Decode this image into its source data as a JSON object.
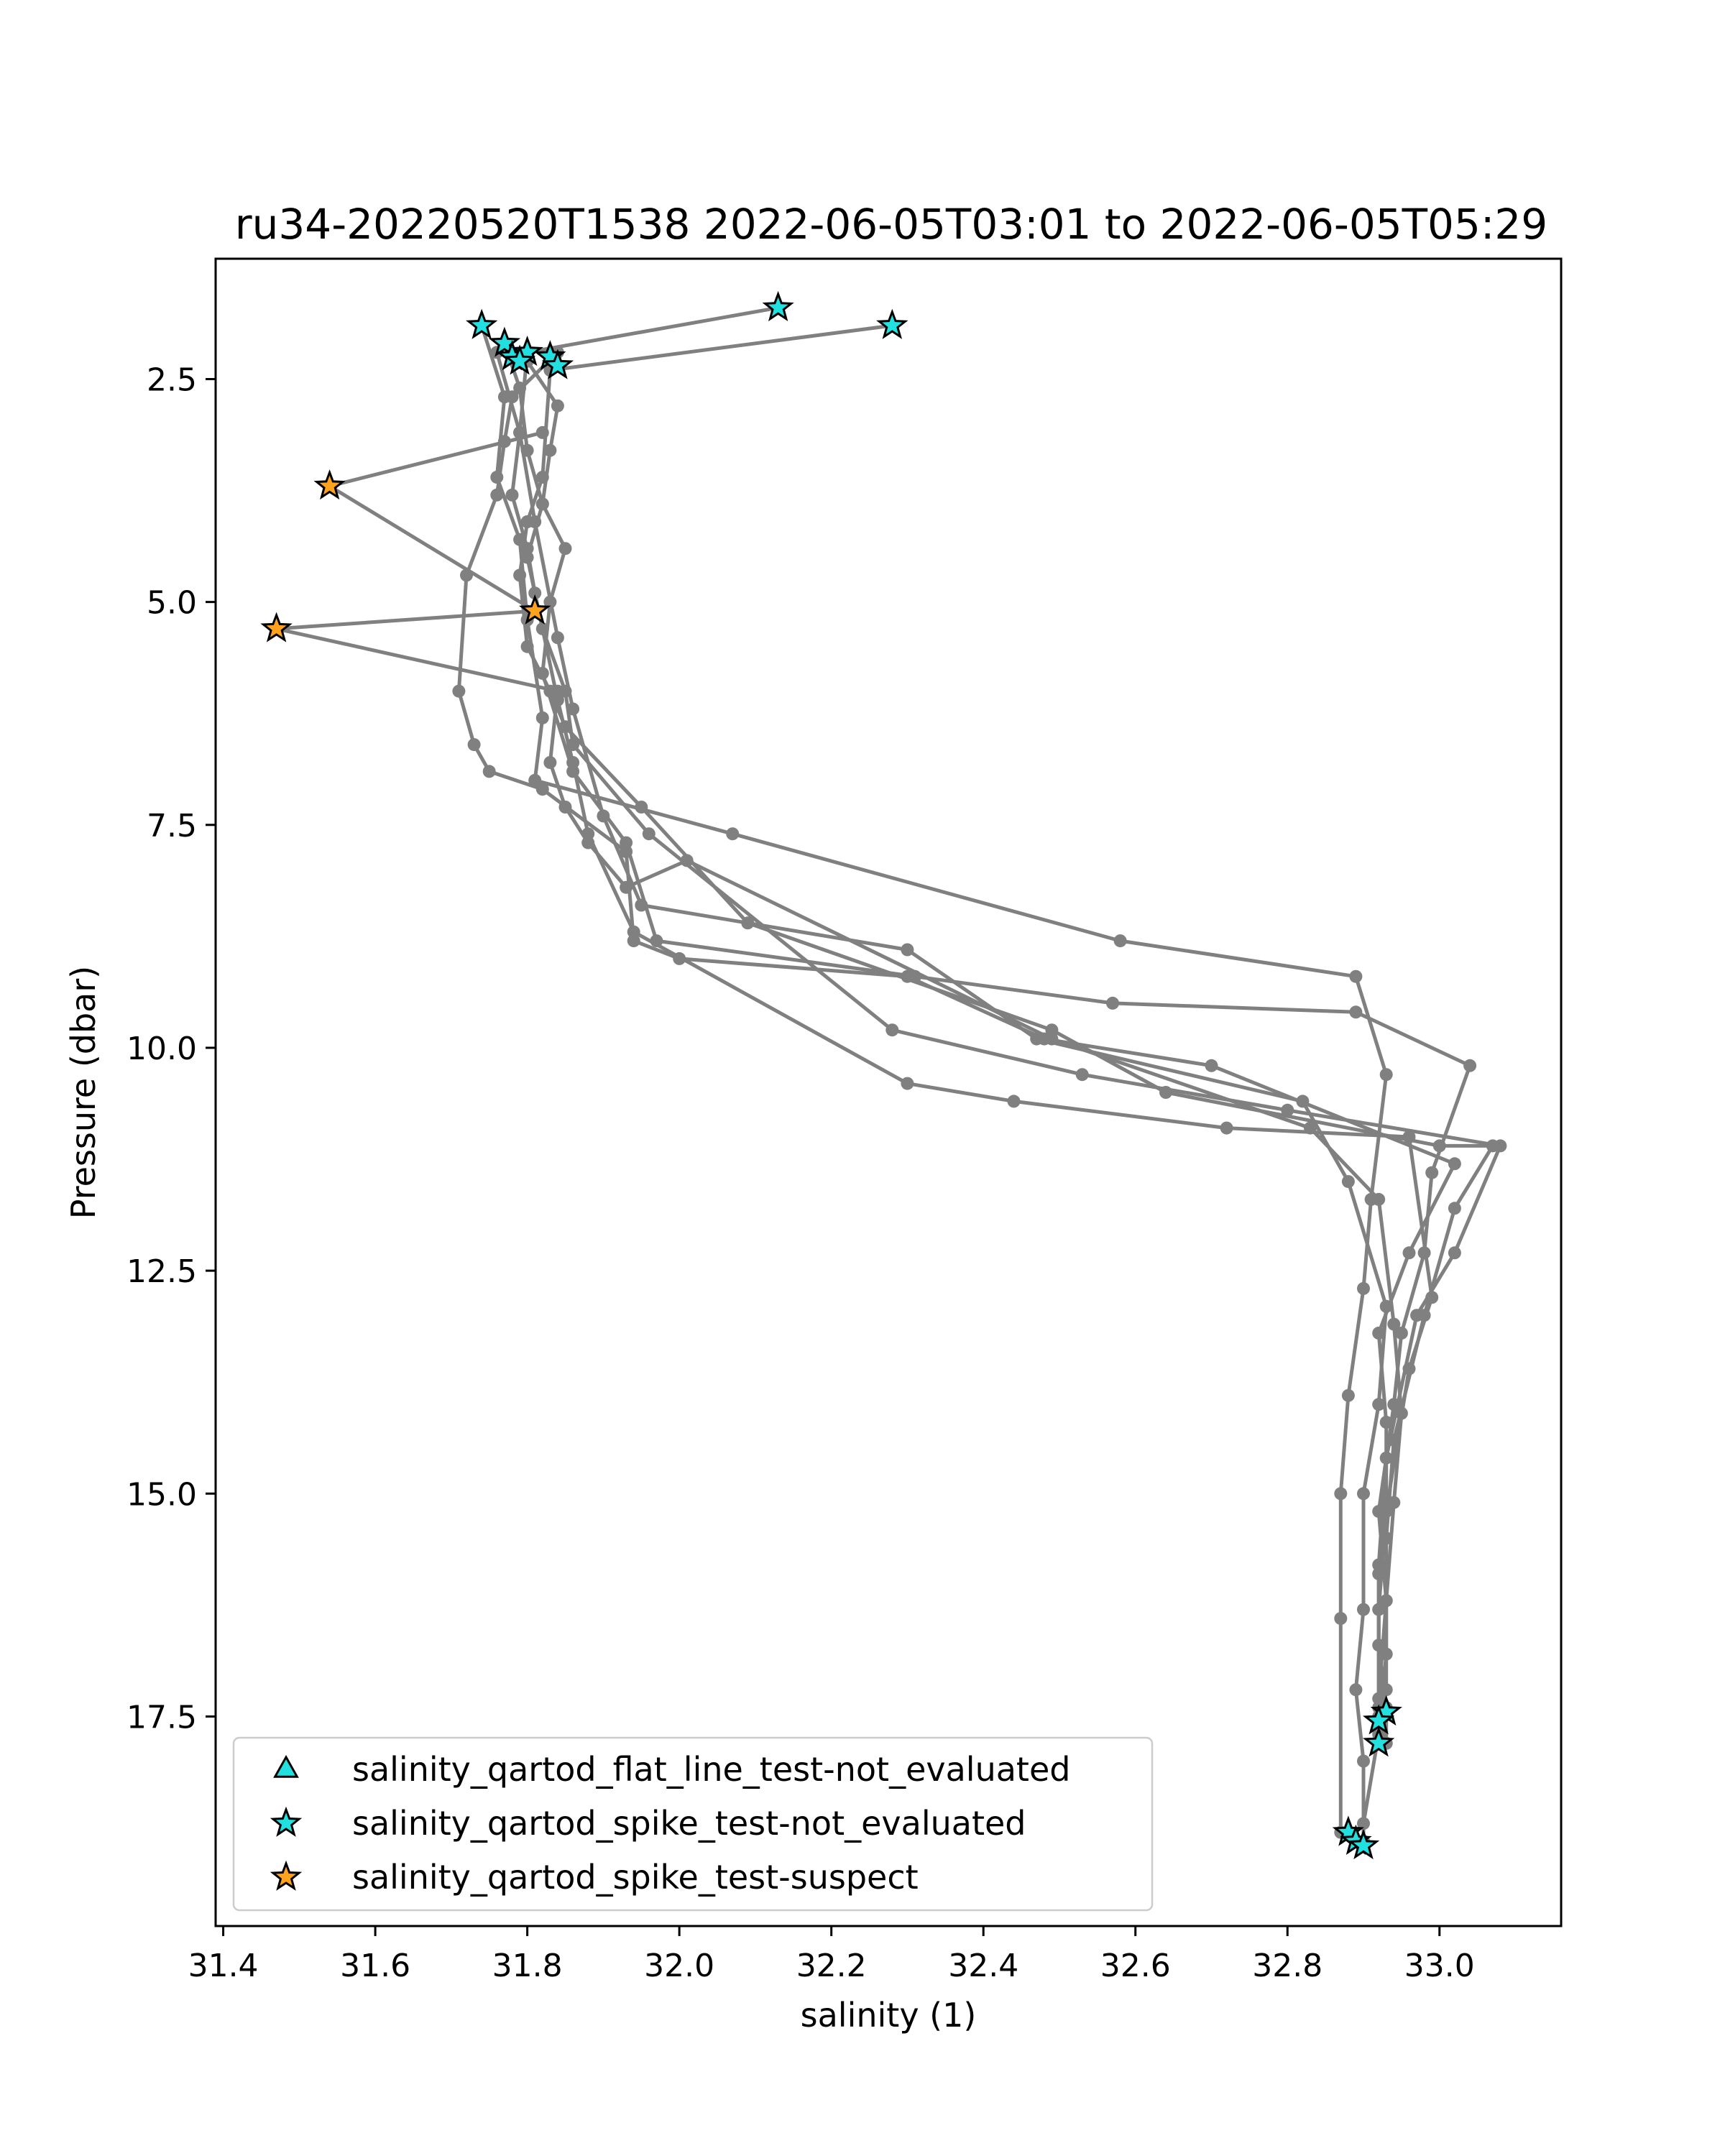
{
  "chart_data": {
    "type": "line",
    "title": "ru34-20220520T1538 2022-06-05T03:01 to 2022-06-05T05:29",
    "xlabel": "salinity (1)",
    "ylabel": "Pressure (dbar)",
    "xlim": [
      31.39,
      33.16
    ],
    "ylim": [
      19.85,
      1.15
    ],
    "y_inverted": true,
    "xticks": [
      31.4,
      31.6,
      31.8,
      32.0,
      32.2,
      32.4,
      32.6,
      32.8,
      33.0
    ],
    "xtick_labels": [
      "31.4",
      "31.6",
      "31.8",
      "32.0",
      "32.2",
      "32.4",
      "32.6",
      "32.8",
      "33.0"
    ],
    "yticks": [
      2.5,
      5.0,
      7.5,
      10.0,
      12.5,
      15.0,
      17.5
    ],
    "ytick_labels": [
      "2.5",
      "5.0",
      "7.5",
      "10.0",
      "12.5",
      "15.0",
      "17.5"
    ],
    "grid": false,
    "legend_position": "lower-left",
    "line_color": "#808080",
    "series": [
      {
        "x": [
          31.84,
          31.78,
          31.77,
          31.76,
          31.72,
          31.71,
          31.73,
          31.75,
          31.82,
          31.93,
          31.94,
          32.0,
          32.3,
          32.48,
          32.7,
          33.02,
          32.96,
          32.92,
          32.93,
          32.93,
          32.92,
          32.92,
          32.93,
          32.93,
          32.93
        ],
        "y": [
          2.2,
          2.7,
          3.2,
          3.8,
          4.7,
          6.0,
          6.6,
          6.9,
          7.1,
          7.8,
          8.8,
          9.0,
          9.2,
          9.9,
          10.2,
          11.3,
          12.3,
          13.2,
          14.2,
          15.1,
          15.9,
          16.7,
          17.4,
          17.8,
          17.8
        ]
      },
      {
        "x": [
          31.8,
          31.84,
          31.83,
          31.82,
          31.85,
          31.83,
          31.82,
          31.86,
          31.93,
          31.97,
          32.31,
          32.57,
          32.89,
          33.04,
          32.99,
          32.98,
          32.95,
          32.94,
          32.92,
          32.93,
          32.93,
          32.9,
          32.9
        ],
        "y": [
          2.3,
          2.8,
          3.3,
          3.9,
          4.4,
          5.0,
          5.8,
          6.9,
          7.7,
          8.8,
          9.2,
          9.5,
          9.6,
          10.2,
          11.4,
          12.3,
          13.2,
          14.0,
          15.2,
          16.2,
          17.2,
          18.7,
          18.9
        ]
      },
      {
        "x": [
          31.74,
          31.77,
          31.76,
          31.79,
          31.8,
          31.82,
          31.81,
          32.07,
          32.58,
          32.89,
          32.93,
          32.91,
          32.9,
          32.88,
          32.87,
          32.87,
          32.87
        ],
        "y": [
          1.9,
          2.7,
          3.6,
          4.3,
          5.2,
          6.3,
          7.0,
          7.6,
          8.8,
          9.2,
          10.3,
          11.7,
          12.7,
          13.9,
          15.0,
          16.4,
          18.8
        ]
      },
      {
        "x": [
          32.13,
          31.8,
          31.79,
          31.81,
          31.84,
          31.86,
          31.9,
          31.95,
          32.3,
          32.47,
          32.82,
          32.88,
          32.93,
          32.92,
          32.9,
          32.9,
          32.89,
          32.9,
          32.9
        ],
        "y": [
          1.7,
          2.2,
          3.1,
          4.1,
          5.4,
          6.2,
          7.4,
          8.4,
          8.9,
          9.9,
          10.6,
          11.5,
          12.9,
          14.0,
          15.0,
          16.3,
          17.2,
          18.0,
          18.9
        ]
      },
      {
        "x": [
          32.28,
          31.83,
          31.82,
          31.8,
          31.79,
          31.8,
          31.83,
          31.85,
          31.95,
          32.09,
          32.49,
          32.64,
          33.0,
          33.07,
          33.02,
          32.98,
          32.94,
          32.93,
          32.93,
          32.92
        ],
        "y": [
          1.9,
          2.4,
          3.6,
          4.1,
          4.7,
          5.5,
          6.0,
          6.4,
          7.3,
          8.6,
          9.8,
          10.5,
          11.1,
          11.1,
          11.8,
          13.0,
          14.4,
          15.5,
          16.8,
          17.7
        ]
      },
      {
        "x": [
          31.77,
          31.79,
          31.8,
          31.82,
          31.8,
          31.82,
          31.85,
          31.86,
          31.96,
          32.28,
          32.53,
          32.8,
          33.08,
          33.02,
          32.97,
          32.93,
          32.92,
          32.92
        ],
        "y": [
          2.1,
          2.6,
          3.3,
          3.9,
          4.5,
          5.3,
          6.0,
          6.6,
          7.6,
          9.8,
          10.3,
          10.7,
          11.1,
          12.3,
          13.0,
          14.6,
          15.8,
          17.5
        ]
      },
      {
        "x": [
          31.76,
          31.79,
          31.78,
          31.8,
          31.81,
          31.84,
          31.86,
          31.88,
          31.94,
          32.3,
          32.44,
          32.72,
          32.96,
          32.99,
          32.96,
          32.93,
          32.92,
          32.92
        ],
        "y": [
          2.2,
          3.1,
          3.8,
          4.4,
          4.9,
          6.1,
          6.8,
          7.6,
          8.7,
          10.4,
          10.6,
          10.9,
          11.0,
          12.8,
          13.6,
          15.2,
          16.3,
          17.4
        ]
      },
      {
        "x": [
          31.82,
          31.54,
          31.81,
          31.47,
          31.84,
          31.83,
          31.85,
          31.88,
          31.93,
          32.01,
          32.49,
          32.83,
          32.92,
          32.94,
          32.95,
          32.94,
          32.93,
          32.92,
          32.92
        ],
        "y": [
          3.1,
          3.7,
          5.1,
          5.3,
          6.0,
          6.8,
          7.3,
          7.7,
          8.2,
          7.9,
          9.9,
          10.9,
          11.7,
          13.1,
          14.1,
          15.1,
          16.2,
          17.3,
          17.6
        ]
      }
    ],
    "markers": [
      {
        "label": "salinity_qartod_spike_test-not_evaluated",
        "color": "#22e0e0",
        "shape": "star",
        "x": [
          31.74,
          31.77,
          31.78,
          31.8,
          31.79,
          31.83,
          31.84,
          32.13,
          32.28,
          32.93,
          32.92,
          32.92,
          32.88,
          32.89,
          32.9
        ],
        "y": [
          1.9,
          2.1,
          2.25,
          2.2,
          2.3,
          2.25,
          2.35,
          1.7,
          1.9,
          17.45,
          17.55,
          17.8,
          18.8,
          18.9,
          18.95
        ]
      },
      {
        "label": "salinity_qartod_spike_test-suspect",
        "color": "#ffa31f",
        "shape": "star",
        "x": [
          31.54,
          31.81,
          31.47
        ],
        "y": [
          3.7,
          5.1,
          5.3
        ]
      }
    ],
    "legend": [
      {
        "label": "salinity_qartod_flat_line_test-not_evaluated",
        "color": "#22e0e0",
        "shape": "triangle"
      },
      {
        "label": "salinity_qartod_spike_test-not_evaluated",
        "color": "#22e0e0",
        "shape": "star"
      },
      {
        "label": "salinity_qartod_spike_test-suspect",
        "color": "#ffa31f",
        "shape": "star"
      }
    ]
  }
}
